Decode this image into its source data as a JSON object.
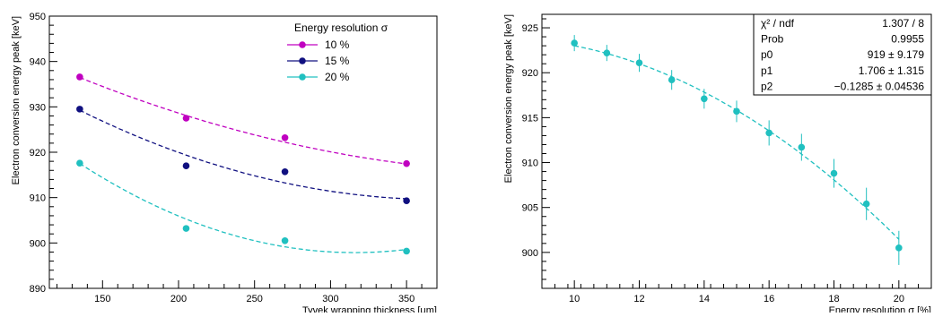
{
  "chart_data": [
    {
      "type": "scatter",
      "xlabel": "Tyvek wrapping thickness [μm]",
      "ylabel": "Electron conversion energy peak [keV]",
      "xlim": [
        115,
        370
      ],
      "ylim": [
        890,
        950
      ],
      "xticks": [
        150,
        200,
        250,
        300,
        350
      ],
      "yticks": [
        890,
        900,
        910,
        920,
        930,
        940,
        950
      ],
      "legend": {
        "title": "Energy resolution σ",
        "placement": "top-right"
      },
      "series": [
        {
          "name": "10 %",
          "color": "#c000c0",
          "x": [
            135,
            205,
            270,
            350
          ],
          "y": [
            936.6,
            927.5,
            923.2,
            917.5
          ],
          "fit_y": [
            936.5,
            928.0,
            922.3,
            917.4
          ]
        },
        {
          "name": "15 %",
          "color": "#101080",
          "x": [
            135,
            205,
            270,
            350
          ],
          "y": [
            929.5,
            917.0,
            915.7,
            909.3
          ],
          "fit_y": [
            929.3,
            919.2,
            913.4,
            909.7
          ]
        },
        {
          "name": "20 %",
          "color": "#20c0c0",
          "x": [
            135,
            205,
            270,
            350
          ],
          "y": [
            917.6,
            903.2,
            900.5,
            898.2
          ],
          "fit_y": [
            917.6,
            905.0,
            899.4,
            898.5
          ]
        }
      ]
    },
    {
      "type": "scatter",
      "xlabel": "Energy resolution σ [%]",
      "ylabel": "Electron conversion energy peak [keV]",
      "xlim": [
        9,
        21
      ],
      "ylim": [
        896,
        926.5
      ],
      "xticks": [
        10,
        12,
        14,
        16,
        18,
        20
      ],
      "yticks": [
        900,
        905,
        910,
        915,
        920,
        925
      ],
      "color": "#20c0c0",
      "x": [
        10,
        11,
        12,
        13,
        14,
        15,
        16,
        17,
        18,
        19,
        20
      ],
      "y": [
        923.3,
        922.2,
        921.1,
        919.2,
        917.1,
        915.7,
        913.3,
        911.7,
        908.8,
        905.4,
        900.5
      ],
      "yerr": [
        0.9,
        0.9,
        1.0,
        1.1,
        1.1,
        1.2,
        1.4,
        1.5,
        1.6,
        1.8,
        1.9
      ],
      "fit": {
        "p0": 919,
        "p1": 1.706,
        "p2": -0.1285
      },
      "stats": [
        {
          "label": "χ² / ndf",
          "value": "1.307 / 8"
        },
        {
          "label": "Prob",
          "value": "0.9955"
        },
        {
          "label": "p0",
          "value": "919 ± 9.179"
        },
        {
          "label": "p1",
          "value": "1.706 ± 1.315"
        },
        {
          "label": "p2",
          "value": "−0.1285 ± 0.04536"
        }
      ]
    }
  ]
}
